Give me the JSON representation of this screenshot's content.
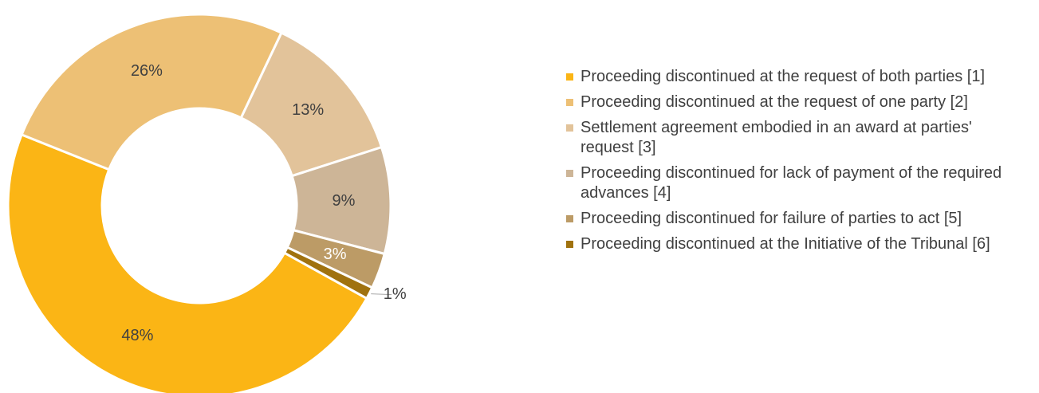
{
  "chart_data": {
    "type": "pie",
    "donut": true,
    "categories": [
      "Proceeding discontinued at the request of both parties [1]",
      "Proceeding discontinued at the request of one party [2]",
      "Settlement agreement embodied in an award at parties' request [3]",
      "Proceeding discontinued for lack of payment of the required advances [4]",
      "Proceeding discontinued for failure of parties to act [5]",
      "Proceeding discontinued at the Initiative of the Tribunal [6]"
    ],
    "values": [
      48,
      26,
      13,
      9,
      3,
      1
    ],
    "value_labels": [
      "48%",
      "26%",
      "13%",
      "9%",
      "3%",
      "1%"
    ],
    "colors": [
      "#fbb515",
      "#edc075",
      "#e2c39a",
      "#cdb597",
      "#bc9b66",
      "#a0720f"
    ]
  }
}
